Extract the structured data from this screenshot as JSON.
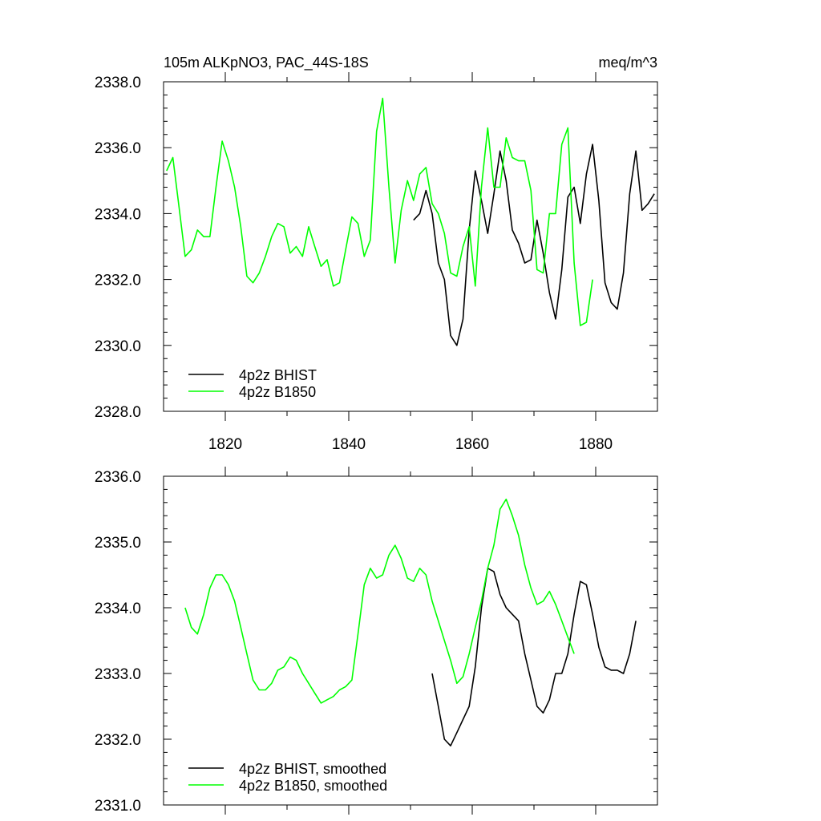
{
  "chart_data": [
    {
      "type": "line",
      "title": "105m ALKpNO3, PAC_44S-18S",
      "units": "meq/m^3",
      "xlim": [
        1810,
        1890
      ],
      "ylim": [
        2328,
        2338
      ],
      "x_ticks": [
        {
          "value": 1820,
          "label": "1820"
        },
        {
          "value": 1840,
          "label": "1840"
        },
        {
          "value": 1860,
          "label": "1860"
        },
        {
          "value": 1880,
          "label": "1880"
        }
      ],
      "y_ticks": [
        {
          "value": 2328,
          "label": "2328.0"
        },
        {
          "value": 2330,
          "label": "2330.0"
        },
        {
          "value": 2332,
          "label": "2332.0"
        },
        {
          "value": 2334,
          "label": "2334.0"
        },
        {
          "value": 2336,
          "label": "2336.0"
        },
        {
          "value": 2338,
          "label": "2338.0"
        }
      ],
      "legend_position": "bottom-left",
      "series": [
        {
          "name": "4p2z BHIST",
          "color": "#000000",
          "x_start": 1850.5,
          "values": [
            2333.8,
            2334.0,
            2334.7,
            2334.0,
            2332.5,
            2332.0,
            2330.3,
            2330.0,
            2330.8,
            2333.5,
            2335.3,
            2334.4,
            2333.4,
            2334.6,
            2335.9,
            2335.0,
            2333.5,
            2333.1,
            2332.5,
            2332.6,
            2333.8,
            2332.8,
            2331.6,
            2330.8,
            2332.3,
            2334.5,
            2334.8,
            2333.7,
            2335.2,
            2336.1,
            2334.4,
            2331.9,
            2331.3,
            2331.1,
            2332.2,
            2334.6,
            2335.9,
            2334.1,
            2334.3,
            2334.6
          ]
        },
        {
          "name": "4p2z B1850",
          "color": "#00ff00",
          "x_start": 1810.5,
          "values": [
            2335.3,
            2335.7,
            2334.2,
            2332.7,
            2332.9,
            2333.5,
            2333.3,
            2333.3,
            2334.8,
            2336.2,
            2335.6,
            2334.8,
            2333.6,
            2332.1,
            2331.9,
            2332.2,
            2332.7,
            2333.3,
            2333.7,
            2333.6,
            2332.8,
            2333.0,
            2332.7,
            2333.6,
            2333.0,
            2332.4,
            2332.6,
            2331.8,
            2331.9,
            2332.9,
            2333.9,
            2333.7,
            2332.7,
            2333.2,
            2336.5,
            2337.5,
            2334.8,
            2332.5,
            2334.1,
            2335.0,
            2334.4,
            2335.2,
            2335.4,
            2334.3,
            2334.0,
            2333.4,
            2332.2,
            2332.1,
            2333.0,
            2333.6,
            2331.8,
            2334.8,
            2336.6,
            2334.8,
            2334.8,
            2336.3,
            2335.7,
            2335.6,
            2335.6,
            2334.7,
            2332.3,
            2332.2,
            2334.0,
            2334.0,
            2336.1,
            2336.6,
            2332.5,
            2330.6,
            2330.7,
            2332.0
          ]
        }
      ]
    },
    {
      "type": "line",
      "xlim": [
        1810,
        1890
      ],
      "ylim": [
        2331,
        2336
      ],
      "x_ticks": [
        {
          "value": 1820,
          "label": ""
        },
        {
          "value": 1840,
          "label": ""
        },
        {
          "value": 1860,
          "label": ""
        },
        {
          "value": 1880,
          "label": ""
        }
      ],
      "y_ticks": [
        {
          "value": 2331,
          "label": "2331.0"
        },
        {
          "value": 2332,
          "label": "2332.0"
        },
        {
          "value": 2333,
          "label": "2333.0"
        },
        {
          "value": 2334,
          "label": "2334.0"
        },
        {
          "value": 2335,
          "label": "2335.0"
        },
        {
          "value": 2336,
          "label": "2336.0"
        }
      ],
      "legend_position": "bottom-left",
      "series": [
        {
          "name": "4p2z BHIST, smoothed",
          "color": "#000000",
          "x_start": 1853.5,
          "values": [
            2333.0,
            2332.5,
            2332.0,
            2331.9,
            2332.1,
            2332.3,
            2332.5,
            2333.1,
            2334.0,
            2334.6,
            2334.55,
            2334.2,
            2334.0,
            2333.9,
            2333.8,
            2333.3,
            2332.9,
            2332.5,
            2332.4,
            2332.6,
            2333.0,
            2333.0,
            2333.3,
            2333.9,
            2334.4,
            2334.35,
            2333.9,
            2333.4,
            2333.1,
            2333.05,
            2333.05,
            2333.0,
            2333.3,
            2333.8
          ]
        },
        {
          "name": "4p2z B1850, smoothed",
          "color": "#00ff00",
          "x_start": 1813.5,
          "values": [
            2334.0,
            2333.7,
            2333.6,
            2333.9,
            2334.3,
            2334.5,
            2334.5,
            2334.35,
            2334.1,
            2333.7,
            2333.3,
            2332.9,
            2332.75,
            2332.75,
            2332.85,
            2333.05,
            2333.1,
            2333.25,
            2333.2,
            2333.0,
            2332.85,
            2332.7,
            2332.55,
            2332.6,
            2332.65,
            2332.75,
            2332.8,
            2332.9,
            2333.6,
            2334.35,
            2334.6,
            2334.45,
            2334.5,
            2334.8,
            2334.95,
            2334.75,
            2334.45,
            2334.4,
            2334.6,
            2334.5,
            2334.1,
            2333.8,
            2333.5,
            2333.2,
            2332.85,
            2332.95,
            2333.3,
            2333.7,
            2334.1,
            2334.6,
            2334.95,
            2335.5,
            2335.65,
            2335.4,
            2335.1,
            2334.65,
            2334.3,
            2334.05,
            2334.1,
            2334.25,
            2334.05,
            2333.8,
            2333.55,
            2333.3
          ]
        }
      ]
    }
  ]
}
